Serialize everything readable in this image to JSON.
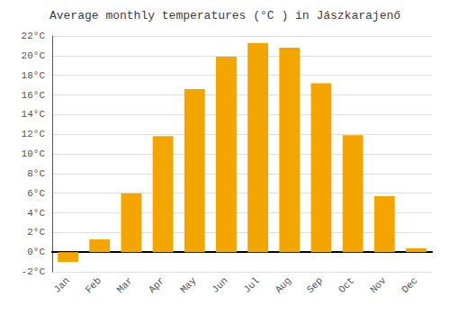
{
  "chart_data": {
    "type": "bar",
    "title": "Average monthly temperatures (°C ) in Jászkarajenő",
    "categories": [
      "Jan",
      "Feb",
      "Mar",
      "Apr",
      "May",
      "Jun",
      "Jul",
      "Aug",
      "Sep",
      "Oct",
      "Nov",
      "Dec"
    ],
    "values": [
      -1.0,
      1.3,
      6.0,
      11.8,
      16.6,
      19.9,
      21.3,
      20.8,
      17.2,
      11.9,
      5.7,
      0.4
    ],
    "color": "#F5A500",
    "ylim": [
      -2,
      22
    ],
    "yticks": [
      {
        "value": -2,
        "label": "-2°C"
      },
      {
        "value": 0,
        "label": "0°C"
      },
      {
        "value": 2,
        "label": "2°C"
      },
      {
        "value": 4,
        "label": "4°C"
      },
      {
        "value": 6,
        "label": "6°C"
      },
      {
        "value": 8,
        "label": "8°C"
      },
      {
        "value": 10,
        "label": "10°C"
      },
      {
        "value": 12,
        "label": "12°C"
      },
      {
        "value": 14,
        "label": "14°C"
      },
      {
        "value": 16,
        "label": "16°C"
      },
      {
        "value": 18,
        "label": "18°C"
      },
      {
        "value": 20,
        "label": "20°C"
      },
      {
        "value": 22,
        "label": "22°C"
      }
    ],
    "grid": true
  }
}
